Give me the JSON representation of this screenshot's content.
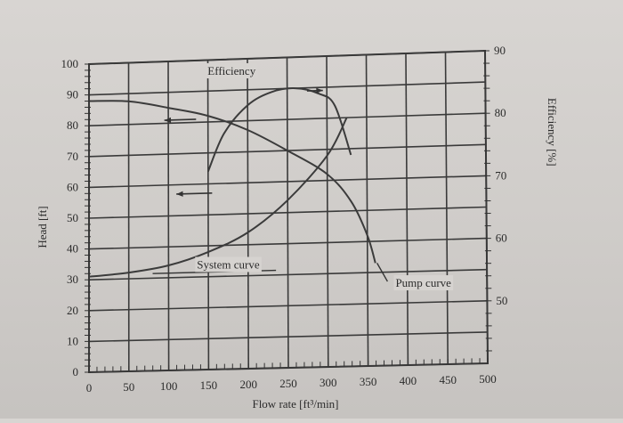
{
  "chart_data": {
    "type": "line",
    "xlabel": "Flow rate [ft³/min]",
    "ylabel": "Head [ft]",
    "y2label": "Efficiency [%]",
    "xlim": [
      0,
      500
    ],
    "ylim": [
      0,
      100
    ],
    "y2lim": [
      40,
      90
    ],
    "xticks": [
      0,
      50,
      100,
      150,
      200,
      250,
      300,
      350,
      400,
      450,
      500
    ],
    "yticks": [
      0,
      10,
      20,
      30,
      40,
      50,
      60,
      70,
      80,
      90,
      100
    ],
    "y2ticks": [
      50,
      60,
      70,
      80,
      90
    ],
    "grid": true,
    "series": [
      {
        "name": "Pump curve",
        "axis": "left",
        "x": [
          0,
          50,
          100,
          150,
          200,
          250,
          300,
          330,
          350,
          360
        ],
        "y": [
          88,
          87.5,
          85,
          82,
          77,
          70,
          62,
          53,
          42,
          33
        ]
      },
      {
        "name": "System curve",
        "axis": "left",
        "x": [
          0,
          50,
          100,
          150,
          200,
          250,
          300,
          325
        ],
        "y": [
          31,
          32,
          34,
          38,
          44,
          54,
          68,
          80
        ]
      },
      {
        "name": "Efficiency",
        "axis": "right",
        "x": [
          150,
          170,
          200,
          230,
          260,
          290,
          310,
          330
        ],
        "y": [
          72,
          78,
          82.5,
          84.5,
          85,
          84,
          82,
          74
        ]
      }
    ],
    "annotations": [
      "Efficiency",
      "System curve",
      "Pump curve"
    ]
  }
}
